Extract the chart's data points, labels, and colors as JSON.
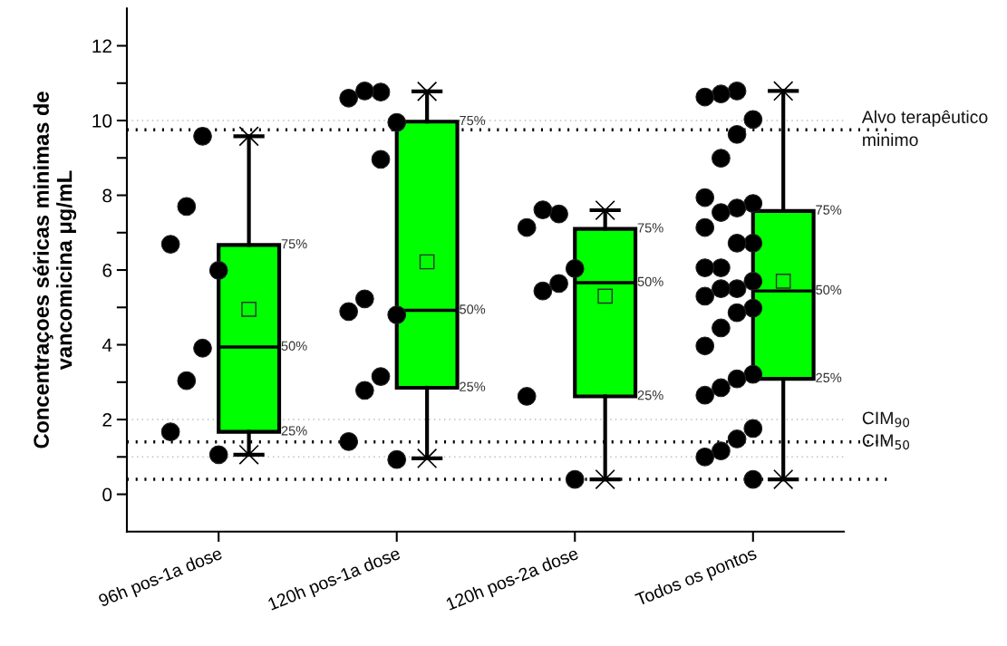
{
  "chart_data": {
    "type": "box",
    "ylabel": "Concentraçoes séricas minimas de\nvancomicina μg/mL",
    "categories": [
      "96h pos-1a dose",
      "120h pos-1a dose",
      "120h pos-2a dose",
      "Todos os pontos"
    ],
    "ylim": [
      -1,
      13
    ],
    "yticks": [
      0,
      {
        "value": 1,
        "label": null
      },
      2,
      {
        "value": 3,
        "label": null
      },
      4,
      {
        "value": 5,
        "label": null
      },
      6,
      {
        "value": 7,
        "label": null
      },
      8,
      {
        "value": 9,
        "label": null
      },
      10,
      {
        "value": 11,
        "label": null
      },
      12
    ],
    "grid": false,
    "series": [
      {
        "color": "#00ff00",
        "boxes": [
          {
            "low": 1.06,
            "q1": 1.67,
            "median": 3.94,
            "q3": 6.67,
            "high": 9.58,
            "mean": 4.95
          },
          {
            "low": 0.96,
            "q1": 2.85,
            "median": 4.92,
            "q3": 9.97,
            "high": 10.78,
            "mean": 6.22
          },
          {
            "low": 0.4,
            "q1": 2.62,
            "median": 5.66,
            "q3": 7.1,
            "high": 7.6,
            "mean": 5.3
          },
          {
            "low": 0.4,
            "q1": 3.09,
            "median": 5.44,
            "q3": 7.58,
            "high": 10.79,
            "mean": 5.7
          }
        ]
      },
      {
        "type": "scatter",
        "color": "#000000",
        "marker": "circle",
        "x": [
          "96h pos-1a dose",
          "96h pos-1a dose",
          "96h pos-1a dose",
          "96h pos-1a dose",
          "96h pos-1a dose",
          "96h pos-1a dose",
          "96h pos-1a dose",
          "96h pos-1a dose",
          "120h pos-1a dose",
          "120h pos-1a dose",
          "120h pos-1a dose",
          "120h pos-1a dose",
          "120h pos-1a dose",
          "120h pos-1a dose",
          "120h pos-1a dose",
          "120h pos-1a dose",
          "120h pos-1a dose",
          "120h pos-1a dose",
          "120h pos-1a dose",
          "120h pos-1a dose",
          "120h pos-2a dose",
          "120h pos-2a dose",
          "120h pos-2a dose",
          "120h pos-2a dose",
          "120h pos-2a dose",
          "120h pos-2a dose",
          "120h pos-2a dose",
          "120h pos-2a dose",
          "Todos os pontos",
          "Todos os pontos",
          "Todos os pontos",
          "Todos os pontos",
          "Todos os pontos",
          "Todos os pontos",
          "Todos os pontos",
          "Todos os pontos",
          "Todos os pontos",
          "Todos os pontos",
          "Todos os pontos",
          "Todos os pontos",
          "Todos os pontos",
          "Todos os pontos",
          "Todos os pontos",
          "Todos os pontos",
          "Todos os pontos",
          "Todos os pontos",
          "Todos os pontos",
          "Todos os pontos",
          "Todos os pontos",
          "Todos os pontos",
          "Todos os pontos",
          "Todos os pontos",
          "Todos os pontos",
          "Todos os pontos",
          "Todos os pontos",
          "Todos os pontos",
          "Todos os pontos",
          "Todos os pontos",
          "Todos os pontos",
          "Todos os pontos"
        ],
        "values": [
          9.58,
          7.7,
          6.69,
          5.99,
          3.91,
          3.04,
          1.67,
          1.06,
          10.76,
          10.79,
          10.6,
          9.95,
          8.96,
          5.23,
          4.89,
          4.8,
          3.15,
          2.78,
          1.41,
          0.93,
          7.5,
          7.61,
          7.14,
          6.04,
          5.64,
          5.44,
          2.62,
          0.4,
          10.79,
          10.71,
          10.63,
          10.03,
          9.63,
          8.99,
          7.94,
          7.78,
          7.66,
          7.54,
          7.14,
          6.72,
          6.72,
          6.06,
          6.06,
          5.7,
          5.5,
          5.5,
          5.3,
          4.98,
          4.86,
          4.45,
          3.97,
          3.21,
          3.09,
          2.85,
          2.65,
          1.76,
          1.48,
          1.16,
          1.0,
          0.4
        ]
      },
      {
        "type": "scatter",
        "color": "#000000",
        "marker": "cross",
        "x": [
          "96h pos-1a dose",
          "96h pos-1a dose",
          "120h pos-1a dose",
          "120h pos-1a dose",
          "120h pos-2a dose",
          "120h pos-2a dose",
          "Todos os pontos",
          "Todos os pontos"
        ],
        "values": [
          1.06,
          9.58,
          0.96,
          10.78,
          0.4,
          7.6,
          0.4,
          10.79
        ]
      }
    ],
    "ref_lines": [
      {
        "axis": "y",
        "value": 9.75,
        "label": "Alvo terapêutico\nminimo",
        "color": "#000000",
        "line_style": "dotted"
      },
      {
        "axis": "y",
        "value": 1.4,
        "label": "CIM$_{50}$",
        "color": "#000000",
        "line_style": "dotted"
      },
      {
        "axis": "y",
        "value": 0.4,
        "color": "#000000",
        "line_style": "dotted"
      },
      {
        "axis": "y",
        "value": 10,
        "color": "#bbbbbb",
        "line_style": "dotted"
      },
      {
        "axis": "y",
        "value": 2,
        "label": "CIM$_{90}$",
        "color": "#bbbbbb",
        "line_style": "dotted"
      },
      {
        "axis": "y",
        "value": 1,
        "color": "#bbbbbb",
        "line_style": "dotted"
      }
    ],
    "annotations": [
      "75%",
      "50%",
      "25%",
      "75%",
      "50%",
      "25%",
      "75%",
      "50%",
      "25%",
      "75%",
      "50%",
      "25%"
    ]
  }
}
